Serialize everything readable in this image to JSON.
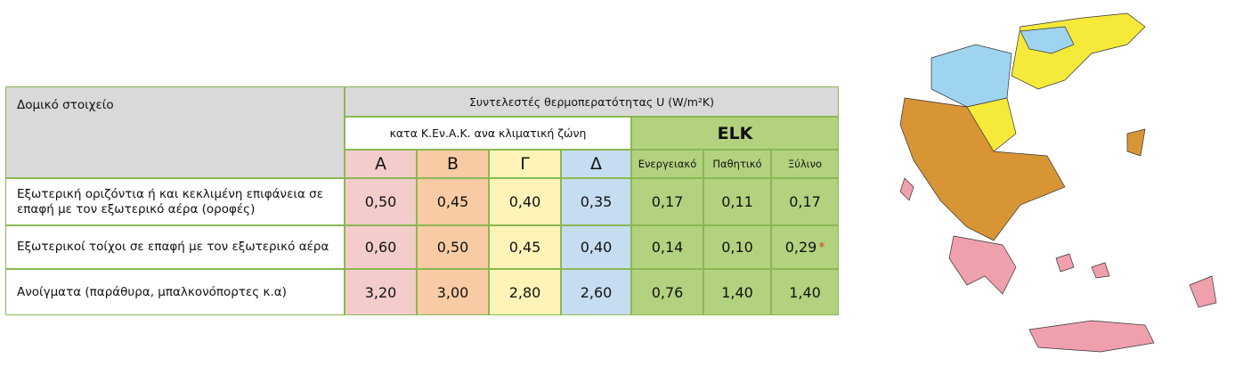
{
  "table": {
    "header": {
      "label": "Δομικό στοιχείο",
      "title": "Συντελεστές θερμοπερατότητας U (W/m²K)",
      "kenak": "κατα Κ.Εν.Α.Κ. ανα κλιματική ζώνη",
      "elk": "ELK",
      "zones": [
        "Α",
        "Β",
        "Γ",
        "Δ"
      ],
      "elk_types": [
        "Ενεργειακό",
        "Παθητικό",
        "Ξύλινο"
      ]
    },
    "rows": [
      {
        "label": "Εξωτερική οριζόντια ή και κεκλιμένη επιφάνεια σε επαφή με τον εξωτερικό αέρα (οροφές)",
        "values": [
          "0,50",
          "0,45",
          "0,40",
          "0,35",
          "0,17",
          "0,11",
          "0,17"
        ]
      },
      {
        "label": "Εξωτερικοί τοίχοι σε επαφή με τον εξωτερικό αέρα",
        "values": [
          "0,60",
          "0,50",
          "0,45",
          "0,40",
          "0,14",
          "0,10",
          "0,29"
        ],
        "note": "*"
      },
      {
        "label": "Ανοίγματα (παράθυρα, μπαλκονόπορτες κ.α)",
        "values": [
          "3,20",
          "3,00",
          "2,80",
          "2,60",
          "0,76",
          "1,40",
          "1,40"
        ]
      }
    ]
  }
}
